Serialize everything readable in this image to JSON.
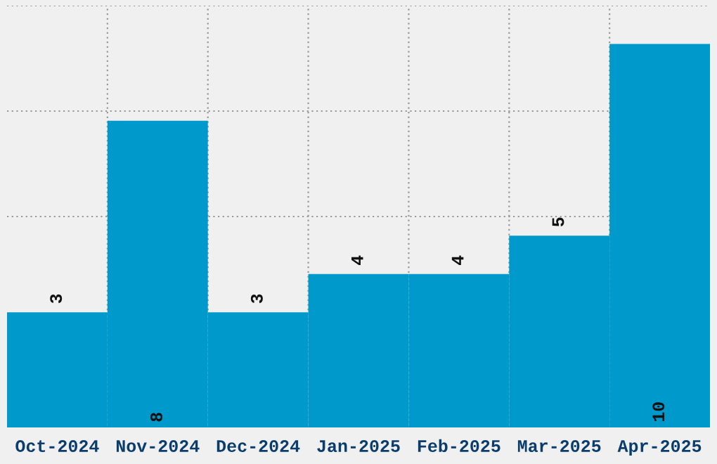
{
  "chart_data": {
    "type": "bar",
    "categories": [
      "Oct-2024",
      "Nov-2024",
      "Dec-2024",
      "Jan-2025",
      "Feb-2025",
      "Mar-2025",
      "Apr-2025"
    ],
    "values": [
      3,
      8,
      3,
      4,
      4,
      5,
      10
    ],
    "color": "#0099cc",
    "ylim": [
      0,
      11
    ],
    "yticks": [
      {
        "value": 2.75,
        "label": null
      },
      {
        "value": 5.5,
        "label": null
      },
      {
        "value": 8.25,
        "label": null
      },
      {
        "value": 11,
        "label": null
      }
    ],
    "tick_labels": "x",
    "grid": true,
    "data_labels": true
  }
}
